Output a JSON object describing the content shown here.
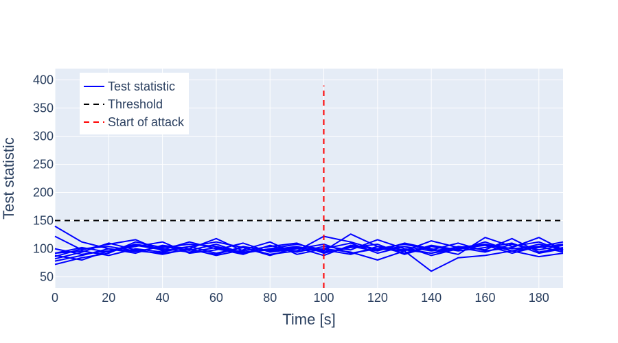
{
  "chart_data": {
    "type": "line",
    "title": "",
    "xlabel": "Time [s]",
    "ylabel": "Test statistic",
    "xlim": [
      0,
      189
    ],
    "ylim": [
      30,
      420
    ],
    "xticks": [
      0,
      20,
      40,
      60,
      80,
      100,
      120,
      140,
      160,
      180
    ],
    "yticks": [
      50,
      100,
      150,
      200,
      250,
      300,
      350,
      400
    ],
    "grid": true,
    "legend_position": "top-left",
    "colors": {
      "test_statistic": "#0000ff",
      "threshold": "#000000",
      "attack": "#ff0000",
      "plot_bg": "#e5ecf6",
      "grid": "#ffffff"
    },
    "legend": [
      {
        "key": "test_statistic",
        "label": "Test statistic",
        "style": "solid"
      },
      {
        "key": "threshold",
        "label": "Threshold",
        "style": "dashed"
      },
      {
        "key": "attack",
        "label": "Start of attack",
        "style": "dashed"
      }
    ],
    "threshold": {
      "y": 150,
      "x": [
        0,
        189
      ]
    },
    "attack_start": {
      "x": 100,
      "y": [
        0,
        390
      ]
    },
    "runs": [
      {
        "x": [
          0,
          10,
          20,
          30,
          40,
          50,
          60,
          70,
          80,
          90,
          100,
          110,
          120,
          130,
          140,
          150,
          160,
          170,
          180,
          189
        ],
        "y": [
          140,
          112,
          100,
          95,
          104,
          97,
          108,
          92,
          100,
          96,
          122,
          112,
          98,
          104,
          96,
          102,
          108,
          100,
          104,
          112
        ]
      },
      {
        "x": [
          0,
          10,
          20,
          30,
          40,
          50,
          60,
          70,
          80,
          90,
          100,
          110,
          120,
          130,
          140,
          150,
          160,
          170,
          180,
          189
        ],
        "y": [
          122,
          98,
          108,
          116,
          96,
          104,
          92,
          102,
          88,
          102,
          96,
          126,
          104,
          92,
          106,
          98,
          112,
          96,
          108,
          100
        ]
      },
      {
        "x": [
          0,
          10,
          20,
          30,
          40,
          50,
          60,
          70,
          80,
          90,
          100,
          110,
          120,
          130,
          140,
          150,
          160,
          170,
          180,
          189
        ],
        "y": [
          92,
          102,
          94,
          106,
          98,
          112,
          100,
          90,
          106,
          94,
          104,
          98,
          116,
          100,
          92,
          104,
          98,
          118,
          94,
          102
        ]
      },
      {
        "x": [
          0,
          10,
          20,
          30,
          40,
          50,
          60,
          70,
          80,
          90,
          100,
          110,
          120,
          130,
          140,
          150,
          160,
          170,
          180,
          189
        ],
        "y": [
          82,
          94,
          110,
          98,
          90,
          100,
          118,
          96,
          104,
          110,
          92,
          104,
          96,
          110,
          100,
          90,
          120,
          104,
          112,
          96
        ]
      },
      {
        "x": [
          0,
          10,
          20,
          30,
          40,
          50,
          60,
          70,
          80,
          90,
          100,
          110,
          120,
          130,
          140,
          150,
          160,
          170,
          180,
          189
        ],
        "y": [
          88,
          80,
          96,
          104,
          112,
          92,
          98,
          110,
          94,
          100,
          108,
          92,
          100,
          96,
          114,
          102,
          94,
          108,
          98,
          106
        ]
      },
      {
        "x": [
          0,
          10,
          20,
          30,
          40,
          50,
          60,
          70,
          80,
          90,
          100,
          110,
          120,
          130,
          140,
          150,
          160,
          170,
          180,
          189
        ],
        "y": [
          78,
          88,
          100,
          92,
          106,
          100,
          88,
          98,
          112,
          90,
          100,
          110,
          92,
          104,
          88,
          100,
          106,
          92,
          104,
          94
        ]
      },
      {
        "x": [
          0,
          10,
          20,
          30,
          40,
          50,
          60,
          70,
          80,
          90,
          100,
          110,
          120,
          130,
          140,
          150,
          160,
          170,
          180,
          189
        ],
        "y": [
          72,
          84,
          92,
          112,
          102,
          108,
          104,
          94,
          98,
          104,
          94,
          102,
          108,
          90,
          104,
          96,
          102,
          110,
          92,
          100
        ]
      },
      {
        "x": [
          0,
          10,
          20,
          30,
          40,
          50,
          60,
          70,
          80,
          90,
          100,
          110,
          120,
          130,
          140,
          150,
          160,
          170,
          180,
          189
        ],
        "y": [
          92,
          96,
          88,
          100,
          94,
          104,
          112,
          102,
          90,
          96,
          100,
          94,
          80,
          96,
          60,
          84,
          88,
          96,
          86,
          92
        ]
      },
      {
        "x": [
          0,
          10,
          20,
          30,
          40,
          50,
          60,
          70,
          80,
          90,
          100,
          110,
          120,
          130,
          140,
          150,
          160,
          170,
          180,
          189
        ],
        "y": [
          86,
          100,
          104,
          96,
          92,
          98,
          90,
          104,
          96,
          102,
          88,
          106,
          100,
          108,
          98,
          110,
          96,
          102,
          120,
          98
        ]
      },
      {
        "x": [
          0,
          10,
          20,
          30,
          40,
          50,
          60,
          70,
          80,
          90,
          100,
          110,
          120,
          130,
          140,
          150,
          160,
          170,
          180,
          189
        ],
        "y": [
          100,
          90,
          96,
          108,
          100,
          94,
          102,
          92,
          100,
          108,
          98,
          90,
          104,
          98,
          92,
          100,
          108,
          96,
          102,
          108
        ]
      }
    ]
  }
}
